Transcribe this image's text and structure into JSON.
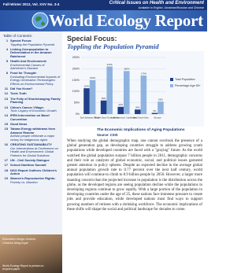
{
  "header": {
    "issue": "Fall-Winter 2012, Vol. XXV No. 3-4",
    "tagline": "Critical Issues on Health and Environment",
    "languages": "Available in English, Ukrainian/Russian and Chinese",
    "title": "World Ecology Report"
  },
  "toc": {
    "heading": "Table of Contents:",
    "items": [
      {
        "page": 1,
        "title": "Special Focus:",
        "subtitle": "Toppling the Population Pyramid"
      },
      {
        "page": 4,
        "title": "Linking Overpopulation to Deforestation in the Amazon Rainforest"
      },
      {
        "page": 5,
        "title": "Health And Environment:",
        "subtitle": "Environmental Causes of Alzheimer's Disease"
      },
      {
        "page": 8,
        "title": "Food for Thought:",
        "subtitle": "Evaluating Environmental Impacts of Energy Generation Technologies: Effects on Environmental Policy"
      },
      {
        "page": 11,
        "title": "Did You Know?"
      },
      {
        "page": 12,
        "title": "Toxic Truth"
      },
      {
        "page": 13,
        "title": "The Folly of Shortchanging Family Planning"
      },
      {
        "page": 14,
        "title": "China's Cancer Village:",
        "subtitle": "Toxic Legacy of Economic Growth"
      },
      {
        "page": 14,
        "title": "IPEN Intervention on Basel Convention"
      },
      {
        "page": 15,
        "title": "Good News"
      },
      {
        "page": 15,
        "title": "Taiwan Energy withdraws from Amazon Reactor",
        "subtitle": "Activist people celebrate a major victory for indigenous rights"
      },
      {
        "page": 16,
        "title": "CREATING SUSTAINABILITY",
        "subtitle": "Our Interventions at Conference on Health and Environment: Global Partners for Global Solutions"
      },
      {
        "page": 17,
        "title": "UN - Civil Society Dialogue"
      },
      {
        "page": 17,
        "title": "School Nutrition Summit"
      },
      {
        "page": 18,
        "title": "NGO Report Outlines Children's Action"
      },
      {
        "page": 19,
        "title": "Women's Reproductive Rights:",
        "subtitle": "Poverty vs. Abortion"
      }
    ]
  },
  "sidebar": {
    "caption_lines": [
      "Education brings choices",
      "Choices bring hope"
    ],
    "note": "World Ecology Report is printed on recycled paper"
  },
  "article": {
    "kicker": "Special Focus:",
    "title": "Toppling the Population Pyramid",
    "chart_caption": "The Economic Implications of Aging Populations",
    "chart_source": "Source: CSIS",
    "body": "When studying the global demographic map, one cannot overlook the presence of a global generation gap, as developing countries struggle to address growing youth populations while developed countries are faced with a \"graying\" future. As the world watched the global population surpass 7 billion people in 2011, demographic concerns and their role as catalysts of global economic, social, and political issues garnered greater attention in policy spheres. Despite an expected decline in the average global annual population growth rate to 0.77 percent over the next half century, world population will continue to climb to 8.9 billion people by 2050. However, a larger more daunting concern than the projected increase in population is the distribution across the globe, as the developed regions are seeing population decline while the populations in developing regions continue to grow rapidly. With a large portion of the population in developing countries under the age of 25, these nations face immense pressure to create jobs and provide education, while developed nations must find ways to support growing numbers of retirees with a shrinking workforce. The economic implications of these shifts will shape the social and political landscape for decades to come."
  },
  "chart_data": {
    "type": "bar",
    "categories": [
      "Sub-Saharan Africa",
      "Middle East/ North Africa",
      "Latin America/ Caribbean",
      "East/South Asia",
      "Europe"
    ],
    "series": [
      {
        "name": "Total Population",
        "color": "#1f3f8a",
        "values": [
          114,
          60,
          32,
          20,
          5
        ],
        "value_labels": [
          "114%",
          "60%",
          "32%",
          "20%",
          "5%"
        ]
      },
      {
        "name": "Percentage Age 65+",
        "color": "#8fb3e0",
        "values": [
          150,
          210,
          190,
          170,
          55
        ],
        "value_labels": [
          "150%",
          "210%",
          "190%",
          "170%",
          "55%"
        ]
      }
    ],
    "ylim": [
      0,
      250
    ],
    "yticks": [
      {
        "value": 0,
        "label": "0%"
      },
      {
        "value": 50,
        "label": "50%"
      },
      {
        "value": 100,
        "label": "100%"
      },
      {
        "value": 150,
        "label": "150%"
      },
      {
        "value": 200,
        "label": "200%"
      },
      {
        "value": 250,
        "label": "250%"
      }
    ],
    "grid": true
  }
}
